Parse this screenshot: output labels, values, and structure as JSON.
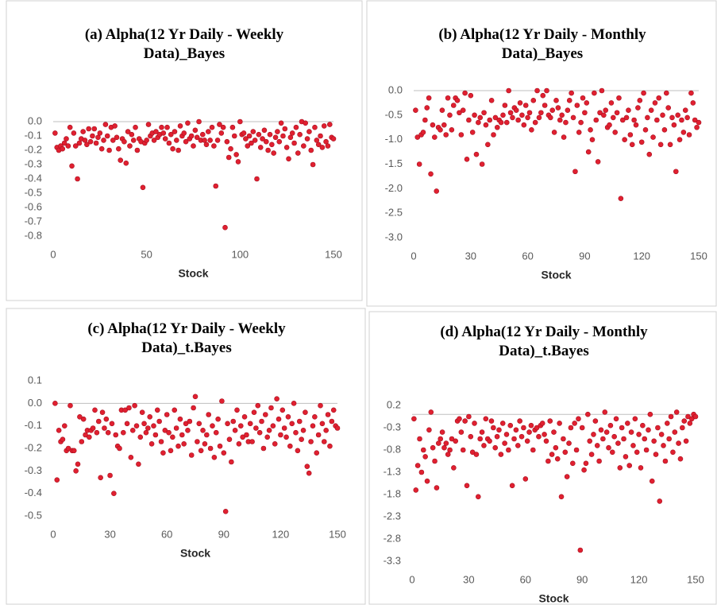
{
  "chart_data": [
    {
      "type": "scatter",
      "title": "(a) Alpha(12 Yr Daily - Weekly Data)_Bayes",
      "x_label": "Stock",
      "color": "#e02030",
      "xlim": [
        0,
        150
      ],
      "xticks": [
        0,
        50,
        100,
        150
      ],
      "ylim": [
        -0.8,
        0
      ],
      "yticks": [
        {
          "value": 0,
          "label": "0.0"
        },
        -0.1,
        -0.2,
        -0.3,
        -0.4,
        -0.5,
        -0.6,
        -0.7,
        -0.8
      ],
      "x": [
        1,
        2,
        3,
        4,
        5,
        6,
        7,
        8,
        9,
        10,
        11,
        12,
        13,
        14,
        15,
        16,
        17,
        18,
        19,
        20,
        21,
        22,
        23,
        24,
        25,
        26,
        27,
        28,
        29,
        30,
        31,
        32,
        33,
        34,
        35,
        36,
        37,
        38,
        39,
        40,
        41,
        42,
        43,
        44,
        45,
        46,
        47,
        48,
        49,
        50,
        51,
        52,
        53,
        54,
        55,
        56,
        57,
        58,
        59,
        60,
        61,
        62,
        63,
        64,
        65,
        66,
        67,
        68,
        69,
        70,
        71,
        72,
        73,
        74,
        75,
        76,
        77,
        78,
        79,
        80,
        81,
        82,
        83,
        84,
        85,
        86,
        87,
        88,
        89,
        90,
        91,
        92,
        93,
        94,
        95,
        96,
        97,
        98,
        99,
        100,
        101,
        102,
        103,
        104,
        105,
        106,
        107,
        108,
        109,
        110,
        111,
        112,
        113,
        114,
        115,
        116,
        117,
        118,
        119,
        120,
        121,
        122,
        123,
        124,
        125,
        126,
        127,
        128,
        129,
        130,
        131,
        132,
        133,
        134,
        135,
        136,
        137,
        138,
        139,
        140,
        141,
        142,
        143,
        144,
        145,
        146,
        147,
        148,
        149,
        150
      ],
      "values": [
        -0.08,
        -0.18,
        -0.2,
        -0.17,
        -0.19,
        -0.15,
        -0.12,
        -0.17,
        -0.04,
        -0.31,
        -0.08,
        -0.17,
        -0.4,
        -0.15,
        -0.12,
        -0.07,
        -0.13,
        -0.16,
        -0.05,
        -0.14,
        -0.1,
        -0.05,
        -0.15,
        -0.11,
        -0.08,
        -0.19,
        -0.13,
        -0.02,
        -0.1,
        -0.2,
        -0.04,
        -0.13,
        -0.03,
        -0.11,
        -0.19,
        -0.27,
        -0.12,
        -0.14,
        -0.29,
        -0.07,
        -0.17,
        -0.09,
        -0.13,
        -0.04,
        -0.2,
        -0.12,
        -0.14,
        -0.46,
        -0.15,
        -0.13,
        -0.02,
        -0.1,
        -0.08,
        -0.13,
        -0.07,
        -0.11,
        -0.09,
        -0.04,
        -0.08,
        -0.12,
        -0.04,
        -0.15,
        -0.09,
        -0.19,
        -0.07,
        -0.13,
        -0.2,
        -0.03,
        -0.1,
        -0.08,
        -0.14,
        -0.01,
        -0.12,
        -0.1,
        -0.17,
        -0.06,
        -0.11,
        0,
        -0.13,
        -0.09,
        -0.13,
        -0.16,
        -0.07,
        -0.13,
        -0.04,
        -0.17,
        -0.45,
        -0.13,
        -0.02,
        -0.08,
        -0.04,
        -0.74,
        -0.14,
        -0.25,
        -0.19,
        -0.04,
        -0.1,
        -0.23,
        -0.28,
        0,
        -0.09,
        -0.08,
        -0.12,
        -0.17,
        -0.1,
        -0.15,
        -0.07,
        -0.13,
        -0.4,
        -0.09,
        -0.18,
        -0.12,
        -0.06,
        -0.14,
        -0.2,
        -0.09,
        -0.16,
        -0.22,
        -0.11,
        -0.07,
        -0.14,
        -0.01,
        -0.1,
        -0.05,
        -0.18,
        -0.26,
        -0.11,
        -0.08,
        -0.15,
        -0.04,
        -0.22,
        -0.09,
        0,
        -0.17,
        -0.01,
        -0.12,
        -0.07,
        -0.2,
        -0.3,
        -0.04,
        -0.13,
        -0.16,
        -0.1,
        -0.18,
        -0.03,
        -0.14,
        -0.17,
        -0.02,
        -0.11,
        -0.12
      ]
    },
    {
      "type": "scatter",
      "title": "(b) Alpha(12 Yr Daily - Monthly Data)_Bayes",
      "x_label": "Stock",
      "color": "#e02030",
      "xlim": [
        0,
        150
      ],
      "xticks": [
        0,
        30,
        60,
        90,
        120,
        150
      ],
      "ylim": [
        -3,
        0
      ],
      "yticks": [
        {
          "value": 0,
          "label": "0.0"
        },
        -0.5,
        {
          "value": -1,
          "label": "-1.0"
        },
        -1.5,
        {
          "value": -2,
          "label": "-2.0"
        },
        -2.5,
        {
          "value": -3,
          "label": "-3.0"
        }
      ],
      "x": [
        1,
        2,
        3,
        4,
        5,
        6,
        7,
        8,
        9,
        10,
        11,
        12,
        13,
        14,
        15,
        16,
        17,
        18,
        19,
        20,
        21,
        22,
        23,
        24,
        25,
        26,
        27,
        28,
        29,
        30,
        31,
        32,
        33,
        34,
        35,
        36,
        37,
        38,
        39,
        40,
        41,
        42,
        43,
        44,
        45,
        46,
        47,
        48,
        49,
        50,
        51,
        52,
        53,
        54,
        55,
        56,
        57,
        58,
        59,
        60,
        61,
        62,
        63,
        64,
        65,
        66,
        67,
        68,
        69,
        70,
        71,
        72,
        73,
        74,
        75,
        76,
        77,
        78,
        79,
        80,
        81,
        82,
        83,
        84,
        85,
        86,
        87,
        88,
        89,
        90,
        91,
        92,
        93,
        94,
        95,
        96,
        97,
        98,
        99,
        100,
        101,
        102,
        103,
        104,
        105,
        106,
        107,
        108,
        109,
        110,
        111,
        112,
        113,
        114,
        115,
        116,
        117,
        118,
        119,
        120,
        121,
        122,
        123,
        124,
        125,
        126,
        127,
        128,
        129,
        130,
        131,
        132,
        133,
        134,
        135,
        136,
        137,
        138,
        139,
        140,
        141,
        142,
        143,
        144,
        145,
        146,
        147,
        148,
        149,
        150
      ],
      "values": [
        -0.4,
        -0.95,
        -1.5,
        -0.9,
        -0.85,
        -0.6,
        -0.35,
        -0.15,
        -1.7,
        -0.7,
        -0.95,
        -2.05,
        -0.75,
        -0.8,
        -0.4,
        -0.7,
        -0.9,
        -0.15,
        -0.5,
        -0.8,
        -0.3,
        -0.15,
        -0.2,
        -0.45,
        -0.9,
        -0.4,
        -0.05,
        -1.4,
        -0.6,
        -0.1,
        -0.85,
        -0.5,
        -1.3,
        -0.65,
        -0.55,
        -1.5,
        -0.45,
        -0.7,
        -1.1,
        -0.6,
        -0.2,
        -0.9,
        -0.55,
        -0.75,
        -0.6,
        -0.65,
        -0.5,
        -0.3,
        -0.65,
        0,
        -0.45,
        -0.55,
        -0.35,
        -0.4,
        -0.6,
        -0.25,
        -0.5,
        -0.7,
        -0.3,
        -0.55,
        -0.45,
        -0.8,
        -0.2,
        -0.65,
        0,
        -0.55,
        -0.45,
        -0.1,
        -0.3,
        0,
        -0.5,
        -0.55,
        -0.4,
        -0.85,
        -0.2,
        -0.35,
        -0.6,
        -0.5,
        -0.95,
        -0.65,
        -0.4,
        -0.2,
        -0.05,
        -0.55,
        -1.65,
        -0.3,
        -0.85,
        -0.65,
        -0.15,
        -0.45,
        -0.25,
        -1.25,
        -0.8,
        -1,
        -0.05,
        -0.6,
        -1.45,
        -0.45,
        0,
        -0.5,
        -0.4,
        -0.75,
        -0.7,
        -0.25,
        -0.55,
        -0.85,
        -0.45,
        -0.15,
        -2.2,
        -0.6,
        -1,
        -0.55,
        -0.4,
        -0.9,
        -1.1,
        -0.6,
        -0.7,
        -0.35,
        -0.2,
        -1.05,
        -0.05,
        -0.8,
        -0.55,
        -1.3,
        -0.4,
        -0.95,
        -0.25,
        -0.6,
        -0.15,
        -1.1,
        -0.5,
        -0.8,
        -0.05,
        -0.35,
        -1.1,
        -0.55,
        -0.7,
        -1.65,
        -0.5,
        -1,
        -0.6,
        -0.85,
        -0.4,
        -0.55,
        -0.9,
        -0.05,
        -0.25,
        -0.6,
        -0.75,
        -0.65
      ]
    },
    {
      "type": "scatter",
      "title": "(c) Alpha(12 Yr Daily - Weekly Data)_t.Bayes",
      "x_label": "Stock",
      "color": "#e02030",
      "xlim": [
        0,
        150
      ],
      "xticks": [
        0,
        30,
        60,
        90,
        120,
        150
      ],
      "ylim": [
        -0.5,
        0.1
      ],
      "yticks": [
        0.1,
        {
          "value": 0,
          "label": "0.0"
        },
        -0.1,
        -0.2,
        -0.3,
        -0.4,
        -0.5
      ],
      "x": [
        1,
        2,
        3,
        4,
        5,
        6,
        7,
        8,
        9,
        10,
        11,
        12,
        13,
        14,
        15,
        16,
        17,
        18,
        19,
        20,
        21,
        22,
        23,
        24,
        25,
        26,
        27,
        28,
        29,
        30,
        31,
        32,
        33,
        34,
        35,
        36,
        37,
        38,
        39,
        40,
        41,
        42,
        43,
        44,
        45,
        46,
        47,
        48,
        49,
        50,
        51,
        52,
        53,
        54,
        55,
        56,
        57,
        58,
        59,
        60,
        61,
        62,
        63,
        64,
        65,
        66,
        67,
        68,
        69,
        70,
        71,
        72,
        73,
        74,
        75,
        76,
        77,
        78,
        79,
        80,
        81,
        82,
        83,
        84,
        85,
        86,
        87,
        88,
        89,
        90,
        91,
        92,
        93,
        94,
        95,
        96,
        97,
        98,
        99,
        100,
        101,
        102,
        103,
        104,
        105,
        106,
        107,
        108,
        109,
        110,
        111,
        112,
        113,
        114,
        115,
        116,
        117,
        118,
        119,
        120,
        121,
        122,
        123,
        124,
        125,
        126,
        127,
        128,
        129,
        130,
        131,
        132,
        133,
        134,
        135,
        136,
        137,
        138,
        139,
        140,
        141,
        142,
        143,
        144,
        145,
        146,
        147,
        148,
        149,
        150
      ],
      "values": [
        0,
        -0.34,
        -0.12,
        -0.17,
        -0.16,
        -0.1,
        -0.21,
        -0.2,
        -0.01,
        -0.21,
        -0.21,
        -0.3,
        -0.27,
        -0.06,
        -0.17,
        -0.07,
        -0.14,
        -0.12,
        -0.15,
        -0.12,
        -0.11,
        -0.03,
        -0.13,
        -0.08,
        -0.33,
        -0.04,
        -0.11,
        -0.07,
        -0.13,
        -0.32,
        -0.09,
        -0.4,
        -0.14,
        -0.19,
        -0.2,
        -0.03,
        -0.13,
        -0.03,
        -0.09,
        -0.02,
        -0.24,
        -0.12,
        -0.01,
        -0.1,
        -0.27,
        -0.15,
        -0.04,
        -0.09,
        -0.13,
        -0.11,
        -0.06,
        -0.18,
        -0.1,
        -0.14,
        -0.03,
        -0.08,
        -0.17,
        -0.22,
        -0.12,
        -0.05,
        -0.13,
        -0.21,
        -0.15,
        -0.03,
        -0.11,
        -0.19,
        -0.07,
        -0.14,
        -0.18,
        -0.09,
        -0.12,
        -0.08,
        -0.23,
        -0.02,
        0.03,
        -0.17,
        -0.09,
        -0.21,
        -0.12,
        -0.18,
        -0.14,
        -0.05,
        -0.2,
        -0.1,
        -0.24,
        -0.13,
        -0.07,
        -0.19,
        0.01,
        -0.22,
        -0.48,
        -0.09,
        -0.16,
        -0.26,
        -0.08,
        -0.12,
        -0.03,
        -0.18,
        -0.1,
        -0.15,
        -0.06,
        -0.14,
        -0.17,
        -0.09,
        -0.17,
        -0.04,
        -0.11,
        -0.01,
        -0.13,
        -0.08,
        -0.2,
        -0.05,
        -0.15,
        -0.12,
        -0.02,
        -0.1,
        -0.18,
        0.02,
        -0.07,
        -0.14,
        -0.03,
        -0.11,
        -0.15,
        -0.06,
        -0.19,
        -0.09,
        0,
        -0.13,
        -0.21,
        -0.08,
        -0.16,
        -0.12,
        -0.04,
        -0.28,
        -0.31,
        -0.17,
        -0.1,
        -0.06,
        -0.22,
        -0.14,
        -0.01,
        -0.09,
        -0.17,
        -0.12,
        -0.05,
        -0.19,
        -0.08,
        -0.03,
        -0.1,
        -0.11
      ]
    },
    {
      "type": "scatter",
      "title": "(d) Alpha(12 Yr Daily - Monthly Data)_t.Bayes",
      "x_label": "Stock",
      "color": "#e02030",
      "xlim": [
        0,
        150
      ],
      "xticks": [
        0,
        30,
        60,
        90,
        120,
        150
      ],
      "ylim": [
        -3.3,
        0.2
      ],
      "yticks": [
        0.2,
        -0.3,
        -0.8,
        -1.3,
        -1.8,
        -2.3,
        -2.8,
        -3.3
      ],
      "x": [
        1,
        2,
        3,
        4,
        5,
        6,
        7,
        8,
        9,
        10,
        11,
        12,
        13,
        14,
        15,
        16,
        17,
        18,
        19,
        20,
        21,
        22,
        23,
        24,
        25,
        26,
        27,
        28,
        29,
        30,
        31,
        32,
        33,
        34,
        35,
        36,
        37,
        38,
        39,
        40,
        41,
        42,
        43,
        44,
        45,
        46,
        47,
        48,
        49,
        50,
        51,
        52,
        53,
        54,
        55,
        56,
        57,
        58,
        59,
        60,
        61,
        62,
        63,
        64,
        65,
        66,
        67,
        68,
        69,
        70,
        71,
        72,
        73,
        74,
        75,
        76,
        77,
        78,
        79,
        80,
        81,
        82,
        83,
        84,
        85,
        86,
        87,
        88,
        89,
        90,
        91,
        92,
        93,
        94,
        95,
        96,
        97,
        98,
        99,
        100,
        101,
        102,
        103,
        104,
        105,
        106,
        107,
        108,
        109,
        110,
        111,
        112,
        113,
        114,
        115,
        116,
        117,
        118,
        119,
        120,
        121,
        122,
        123,
        124,
        125,
        126,
        127,
        128,
        129,
        130,
        131,
        132,
        133,
        134,
        135,
        136,
        137,
        138,
        139,
        140,
        141,
        142,
        143,
        144,
        145,
        146,
        147,
        148,
        149,
        150
      ],
      "values": [
        -0.1,
        -1.7,
        -1.15,
        -0.55,
        -1.3,
        -0.8,
        -0.95,
        -1.5,
        -0.35,
        0.05,
        -0.75,
        -1.05,
        -1.65,
        -0.65,
        -0.55,
        -0.4,
        -0.75,
        -0.65,
        -0.9,
        -0.8,
        -0.55,
        -1.2,
        -0.6,
        -0.15,
        -0.1,
        -0.4,
        -0.8,
        -0.15,
        -1.6,
        -0.05,
        -0.5,
        -0.85,
        -0.2,
        -0.9,
        -1.85,
        -0.55,
        -0.4,
        -0.7,
        -0.1,
        -0.55,
        -0.6,
        -0.15,
        -0.3,
        -0.75,
        -0.5,
        -0.35,
        -0.9,
        -0.2,
        -0.65,
        -0.45,
        -0.8,
        -0.25,
        -1.6,
        -0.55,
        -0.35,
        -0.7,
        -0.15,
        -0.5,
        -0.3,
        -1.45,
        -0.6,
        -0.4,
        -0.25,
        -0.8,
        -0.35,
        -0.3,
        -0.5,
        -0.25,
        -0.2,
        -0.45,
        -0.6,
        -1.05,
        -0.15,
        -0.9,
        -0.4,
        -0.75,
        -1,
        -0.2,
        -1.85,
        -0.55,
        -0.85,
        -1.4,
        -0.65,
        -0.3,
        -1.1,
        -0.2,
        -0.8,
        -0.1,
        -3.05,
        -0.3,
        -1.25,
        -1.1,
        0,
        -0.6,
        -0.9,
        -0.45,
        -0.15,
        -0.7,
        -1.05,
        -0.35,
        -0.55,
        0.05,
        -0.4,
        -0.75,
        -0.25,
        -0.85,
        -0.5,
        -0.1,
        -0.65,
        -1.2,
        -0.3,
        -0.55,
        -0.95,
        -0.2,
        -1.15,
        -0.4,
        -0.7,
        -0.1,
        -0.85,
        -0.45,
        -1.2,
        -0.25,
        -0.55,
        -0.8,
        -0.35,
        0,
        -1.5,
        -0.6,
        -0.9,
        -0.3,
        -1.95,
        -0.45,
        -0.7,
        -1.05,
        -0.2,
        -0.55,
        -0.05,
        -0.85,
        -0.4,
        0.05,
        -0.65,
        -1,
        -0.3,
        -0.15,
        -0.6,
        -0.05,
        -0.2,
        -0.1,
        0,
        -0.05
      ]
    }
  ]
}
